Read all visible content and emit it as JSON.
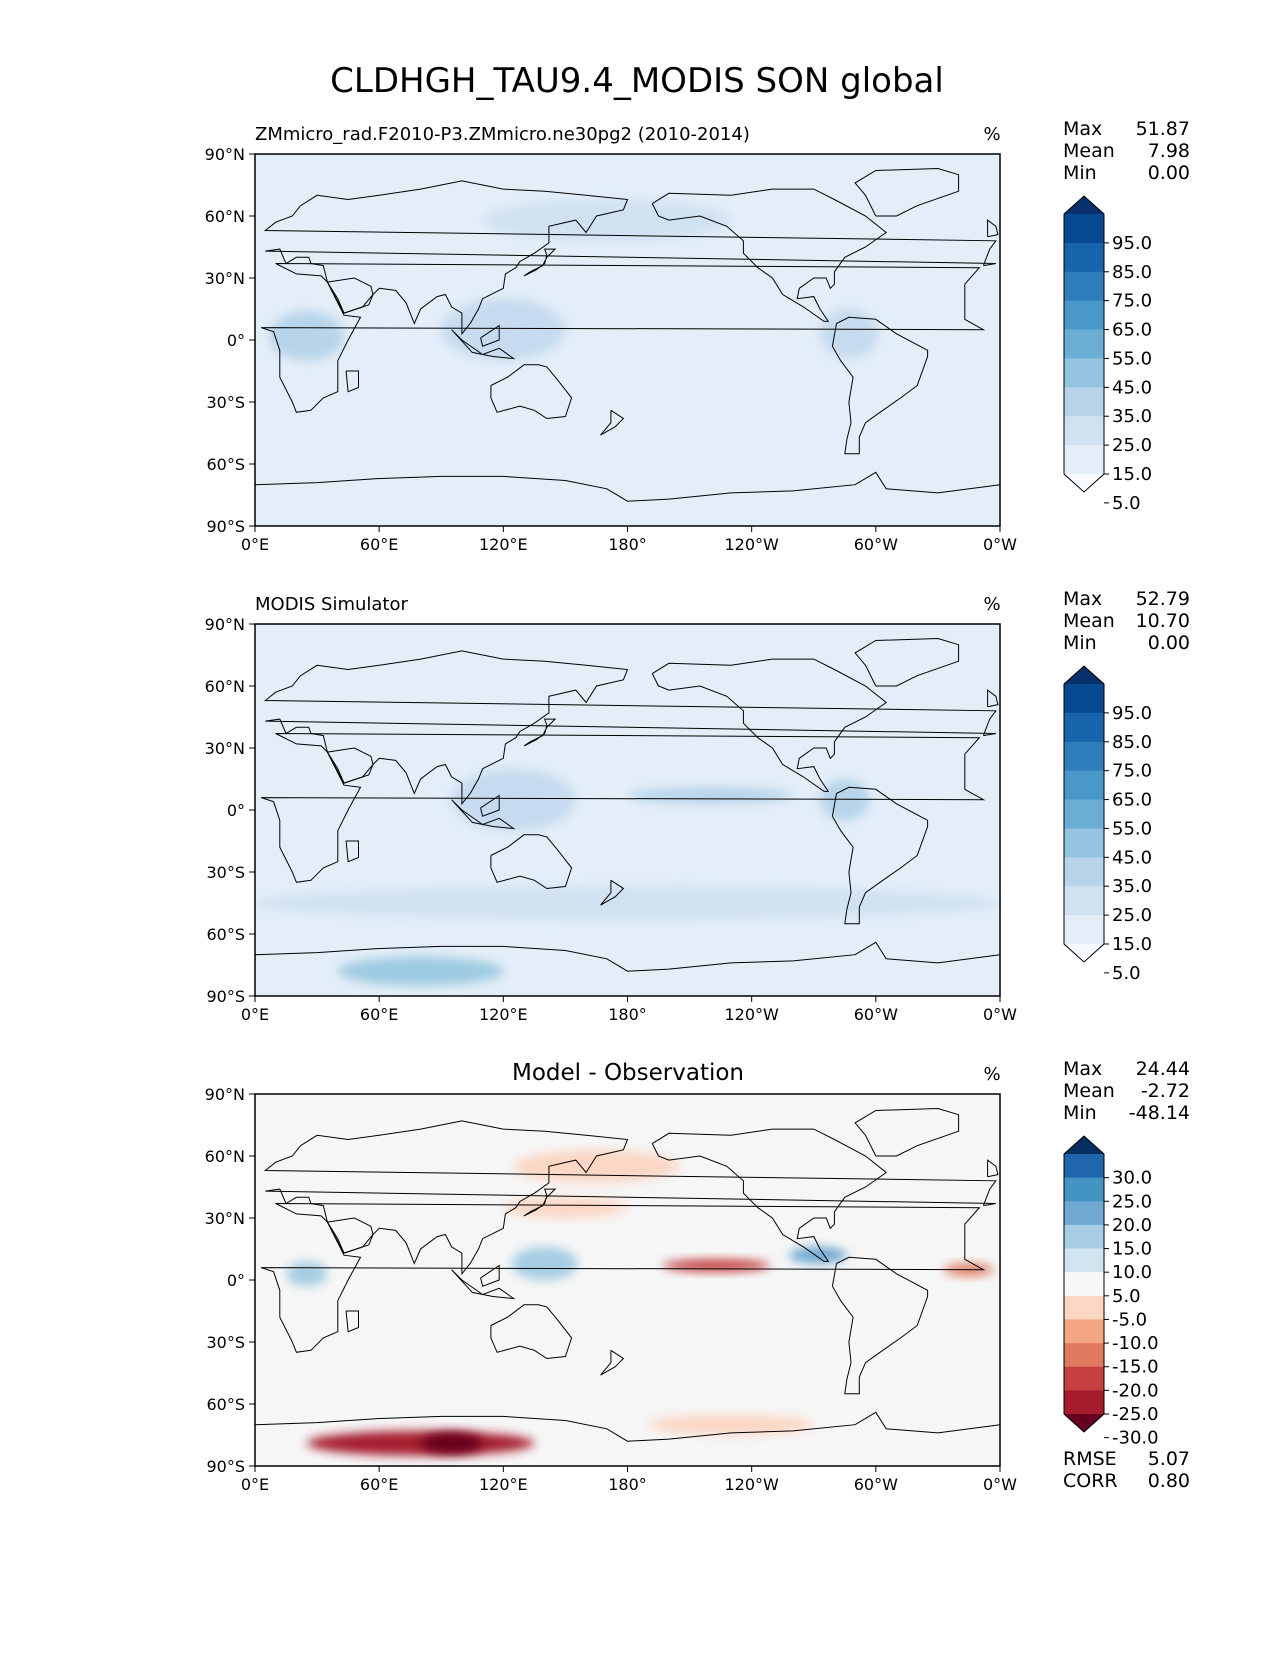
{
  "figure": {
    "title": "CLDHGH_TAU9.4_MODIS SON global"
  },
  "panels": [
    {
      "key": "model",
      "title_left": "ZMmicro_rad.F2010-P3.ZMmicro.ne30pg2 (2010-2014)",
      "title_center": "",
      "units": "%",
      "stats": [
        {
          "label": "Max",
          "value": "51.87"
        },
        {
          "label": "Mean",
          "value": "7.98"
        },
        {
          "label": "Min",
          "value": "0.00"
        }
      ],
      "colorbar": {
        "labels": [
          "95.0",
          "85.0",
          "75.0",
          "65.0",
          "55.0",
          "45.0",
          "35.0",
          "25.0",
          "15.0",
          "5.0"
        ],
        "colors_top_to_bottom": [
          "#08306b",
          "#084a91",
          "#1764ab",
          "#2e7ebc",
          "#4a98c9",
          "#6aaed6",
          "#94c4df",
          "#b7d4ea",
          "#d0e1f2",
          "#e3eef8",
          "#f7fbff"
        ]
      },
      "map_base_color": "#e3eef8"
    },
    {
      "key": "obs",
      "title_left": "MODIS Simulator",
      "title_center": "",
      "units": "%",
      "stats": [
        {
          "label": "Max",
          "value": "52.79"
        },
        {
          "label": "Mean",
          "value": "10.70"
        },
        {
          "label": "Min",
          "value": "0.00"
        }
      ],
      "colorbar": {
        "labels": [
          "95.0",
          "85.0",
          "75.0",
          "65.0",
          "55.0",
          "45.0",
          "35.0",
          "25.0",
          "15.0",
          "5.0"
        ],
        "colors_top_to_bottom": [
          "#08306b",
          "#084a91",
          "#1764ab",
          "#2e7ebc",
          "#4a98c9",
          "#6aaed6",
          "#94c4df",
          "#b7d4ea",
          "#d0e1f2",
          "#e3eef8",
          "#f7fbff"
        ]
      },
      "map_base_color": "#e3eef8"
    },
    {
      "key": "diff",
      "title_left": "",
      "title_center": "Model - Observation",
      "units": "%",
      "stats": [
        {
          "label": "Max",
          "value": "24.44"
        },
        {
          "label": "Mean",
          "value": "-2.72"
        },
        {
          "label": "Min",
          "value": "-48.14"
        }
      ],
      "colorbar": {
        "labels": [
          "30.0",
          "25.0",
          "20.0",
          "15.0",
          "10.0",
          "5.0",
          "-5.0",
          "-10.0",
          "-15.0",
          "-20.0",
          "-25.0",
          "-30.0"
        ],
        "colors_top_to_bottom": [
          "#053061",
          "#2166ac",
          "#4393c3",
          "#6fa9d1",
          "#a6cde3",
          "#d1e5f0",
          "#f7f7f7",
          "#fbd7c4",
          "#f4a582",
          "#e07b62",
          "#c5403f",
          "#a61c2e",
          "#67001f"
        ]
      },
      "map_base_color": "#f6f6f6",
      "extra_stats": [
        {
          "label": "RMSE",
          "value": "5.07"
        },
        {
          "label": "CORR",
          "value": "0.80"
        }
      ]
    }
  ],
  "axes": {
    "lat_ticks": [
      "90°N",
      "60°N",
      "30°N",
      "0°",
      "30°S",
      "60°S",
      "90°S"
    ],
    "lon_ticks": [
      "0°E",
      "60°E",
      "120°E",
      "180°",
      "120°W",
      "60°W",
      "0°W"
    ]
  },
  "map_features": [
    {
      "panel": "model",
      "kind": "blob",
      "lon": 25,
      "lat": 2,
      "rx": 18,
      "ry": 12,
      "color": "#b7d4ea"
    },
    {
      "panel": "model",
      "kind": "blob",
      "lon": 120,
      "lat": 5,
      "rx": 30,
      "ry": 15,
      "color": "#c6dbef"
    },
    {
      "panel": "model",
      "kind": "blob",
      "lon": 287,
      "lat": 3,
      "rx": 14,
      "ry": 12,
      "color": "#c6dbef"
    },
    {
      "panel": "model",
      "kind": "blob",
      "lon": 170,
      "lat": 58,
      "rx": 60,
      "ry": 10,
      "color": "#d0e1f2"
    },
    {
      "panel": "model",
      "kind": "band",
      "lon": 0,
      "lat": 10,
      "rx": 0,
      "ry": 0,
      "color": "#f7fbff"
    },
    {
      "panel": "obs",
      "kind": "blob",
      "lon": 80,
      "lat": -78,
      "rx": 40,
      "ry": 7,
      "color": "#9ecae1"
    },
    {
      "panel": "obs",
      "kind": "blob",
      "lon": 220,
      "lat": 7,
      "rx": 40,
      "ry": 4,
      "color": "#b7d4ea"
    },
    {
      "panel": "obs",
      "kind": "blob",
      "lon": 125,
      "lat": 5,
      "rx": 30,
      "ry": 15,
      "color": "#c6dbef"
    },
    {
      "panel": "obs",
      "kind": "blob",
      "lon": 285,
      "lat": 5,
      "rx": 12,
      "ry": 10,
      "color": "#b7d4ea"
    },
    {
      "panel": "obs",
      "kind": "blob",
      "lon": 180,
      "lat": -45,
      "rx": 180,
      "ry": 8,
      "color": "#d0e1f2"
    },
    {
      "panel": "diff",
      "kind": "blob",
      "lon": 80,
      "lat": -79,
      "rx": 55,
      "ry": 6,
      "color": "#a61c2e"
    },
    {
      "panel": "diff",
      "kind": "blob",
      "lon": 95,
      "lat": -79,
      "rx": 15,
      "ry": 5,
      "color": "#67001f"
    },
    {
      "panel": "diff",
      "kind": "blob",
      "lon": 223,
      "lat": 7,
      "rx": 26,
      "ry": 3,
      "color": "#c5403f"
    },
    {
      "panel": "diff",
      "kind": "blob",
      "lon": 345,
      "lat": 5,
      "rx": 12,
      "ry": 3,
      "color": "#e07b62"
    },
    {
      "panel": "diff",
      "kind": "blob",
      "lon": 140,
      "lat": 8,
      "rx": 16,
      "ry": 8,
      "color": "#a6cde3"
    },
    {
      "panel": "diff",
      "kind": "blob",
      "lon": 272,
      "lat": 12,
      "rx": 14,
      "ry": 4,
      "color": "#6fa9d1"
    },
    {
      "panel": "diff",
      "kind": "blob",
      "lon": 25,
      "lat": 3,
      "rx": 10,
      "ry": 6,
      "color": "#a6cde3"
    },
    {
      "panel": "diff",
      "kind": "blob",
      "lon": 230,
      "lat": -70,
      "rx": 40,
      "ry": 5,
      "color": "#fbd7c4"
    },
    {
      "panel": "diff",
      "kind": "blob",
      "lon": 165,
      "lat": 55,
      "rx": 40,
      "ry": 8,
      "color": "#fbd7c4"
    },
    {
      "panel": "diff",
      "kind": "blob",
      "lon": 150,
      "lat": 35,
      "rx": 30,
      "ry": 5,
      "color": "#fbd7c4"
    }
  ]
}
